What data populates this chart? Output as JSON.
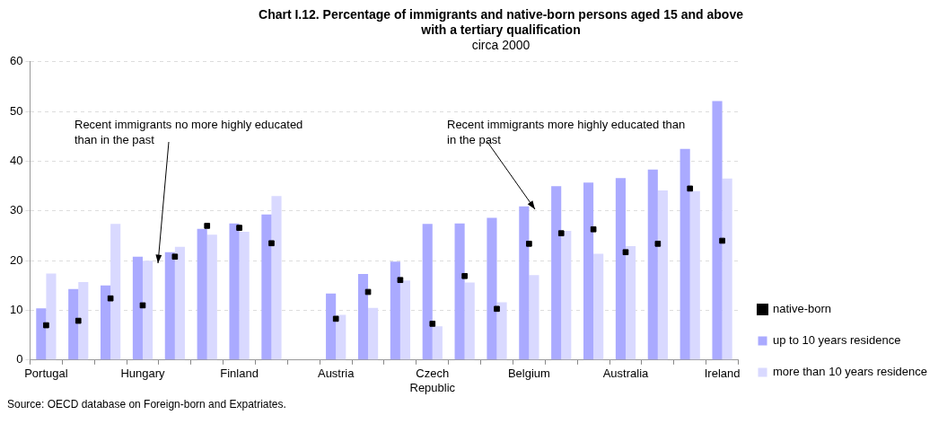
{
  "chart_data": {
    "type": "bar",
    "title": "Chart I.12. Percentage of immigrants and native-born persons aged 15 and above with a tertiary qualification",
    "subtitle": "circa 2000",
    "categories": [
      "Portugal",
      null,
      null,
      "Hungary",
      null,
      null,
      "Finland",
      null,
      null,
      "Austria",
      null,
      null,
      "Czech Republic",
      null,
      null,
      "Belgium",
      null,
      null,
      "Australia",
      null,
      null,
      "Ireland"
    ],
    "series": [
      {
        "name": "up to 10 years residence",
        "color": "#aaaaff",
        "values": [
          10.4,
          14.3,
          15,
          20.8,
          21.7,
          26.4,
          27.5,
          29.3,
          null,
          13.4,
          17.3,
          19.8,
          27.4,
          27.5,
          28.6,
          30.9,
          35,
          35.7,
          36.6,
          38.3,
          42.5,
          52.1
        ]
      },
      {
        "name": "more than 10 years residence",
        "color": "#d9d9ff",
        "values": [
          17.4,
          15.7,
          27.4,
          20,
          22.8,
          25.2,
          25.8,
          33,
          null,
          9.1,
          10.5,
          16,
          6.8,
          15.6,
          11.6,
          17.1,
          26,
          21.4,
          22.9,
          34.1,
          34,
          36.5
        ]
      },
      {
        "name": "native-born",
        "type": "scatter",
        "color": "#000000",
        "values": [
          7,
          7.9,
          12.4,
          11,
          20.8,
          27,
          26.6,
          23.5,
          null,
          8.3,
          13.7,
          16.1,
          7.3,
          16.9,
          10.3,
          23.4,
          25.5,
          26.3,
          21.7,
          23.4,
          34.5,
          24
        ]
      }
    ],
    "marker": "square",
    "ylim": [
      0,
      60
    ],
    "yticks": [
      0,
      10,
      20,
      30,
      40,
      50,
      60
    ],
    "grid": "y",
    "legend": "bottom right",
    "annotations": [
      "Recent immigrants no more highly educated than in the past",
      "Recent immigrants more highly educated than in the past",
      "Source: OECD database on Foreign-born and Expatriates."
    ]
  }
}
